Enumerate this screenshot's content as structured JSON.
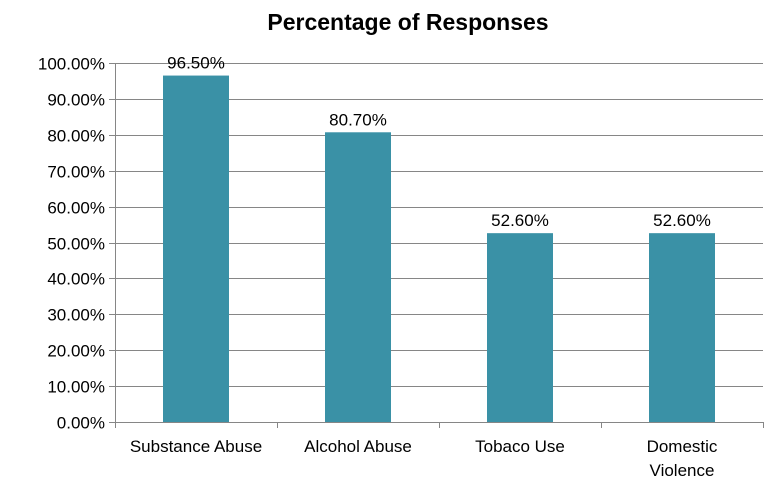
{
  "chart_data": {
    "type": "bar",
    "title": "Percentage of Responses",
    "xlabel": "",
    "ylabel": "",
    "categories": [
      "Substance Abuse",
      "Alcohol Abuse",
      "Tobaco Use",
      "Domestic Violence"
    ],
    "category_lines": [
      [
        "Substance Abuse"
      ],
      [
        "Alcohol Abuse"
      ],
      [
        "Tobaco Use"
      ],
      [
        "Domestic",
        "Violence"
      ]
    ],
    "values": [
      96.5,
      80.7,
      52.6,
      52.6
    ],
    "data_labels": [
      "96.50%",
      "80.70%",
      "52.60%",
      "52.60%"
    ],
    "ylim": [
      0,
      100
    ],
    "y_ticks": [
      0,
      10,
      20,
      30,
      40,
      50,
      60,
      70,
      80,
      90,
      100
    ],
    "y_tick_labels": [
      "0.00%",
      "10.00%",
      "20.00%",
      "30.00%",
      "40.00%",
      "50.00%",
      "60.00%",
      "70.00%",
      "80.00%",
      "90.00%",
      "100.00%"
    ],
    "grid": true,
    "legend": "none",
    "bar_color": "#3a91a6"
  }
}
